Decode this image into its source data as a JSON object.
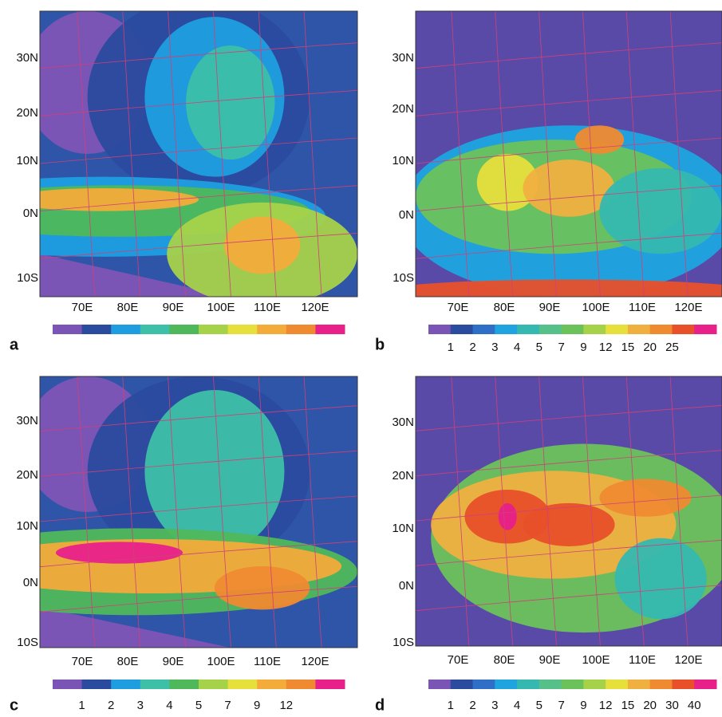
{
  "panels": [
    {
      "letter": "a",
      "lat_labels": [
        "30N",
        "20N",
        "10N",
        "0N",
        "10S"
      ],
      "lon_labels": [
        "70E",
        "80E",
        "90E",
        "100E",
        "110E",
        "120E"
      ],
      "colorbar": {
        "colors": [
          "#7a55b5",
          "#2a4b9e",
          "#1e9ee0",
          "#3dbfa8",
          "#4fb85a",
          "#a6d24a",
          "#e6df3c",
          "#f3ab3a",
          "#f08a30",
          "#e8208a"
        ],
        "labels": []
      }
    },
    {
      "letter": "b",
      "lat_labels": [
        "30N",
        "20N",
        "10N",
        "0N",
        "10S"
      ],
      "lon_labels": [
        "70E",
        "80E",
        "90E",
        "100E",
        "110E",
        "120E"
      ],
      "colorbar": {
        "colors": [
          "#7a55b5",
          "#2a4b9e",
          "#2f6fc8",
          "#1fa4e0",
          "#35b8b0",
          "#55c08a",
          "#6cc25a",
          "#a6d24a",
          "#e6df3c",
          "#f0b040",
          "#f08a30",
          "#e8502a",
          "#e8208a"
        ],
        "labels": [
          "1",
          "2",
          "3",
          "4",
          "5",
          "7",
          "9",
          "12",
          "15",
          "20",
          "25"
        ]
      }
    },
    {
      "letter": "c",
      "lat_labels": [
        "30N",
        "20N",
        "10N",
        "0N",
        "10S"
      ],
      "lon_labels": [
        "70E",
        "80E",
        "90E",
        "100E",
        "110E",
        "120E"
      ],
      "colorbar": {
        "colors": [
          "#7a55b5",
          "#2a4b9e",
          "#1e9ee0",
          "#3dbfa8",
          "#4fb85a",
          "#a6d24a",
          "#e6df3c",
          "#f3ab3a",
          "#f08a30",
          "#e8208a"
        ],
        "labels": [
          "1",
          "2",
          "3",
          "4",
          "5",
          "7",
          "9",
          "12"
        ]
      }
    },
    {
      "letter": "d",
      "lat_labels": [
        "30N",
        "20N",
        "10N",
        "0N",
        "10S"
      ],
      "lon_labels": [
        "70E",
        "80E",
        "90E",
        "100E",
        "110E",
        "120E"
      ],
      "colorbar": {
        "colors": [
          "#7a55b5",
          "#2a4b9e",
          "#2f6fc8",
          "#1fa4e0",
          "#35b8b0",
          "#55c08a",
          "#6cc25a",
          "#a6d24a",
          "#e6df3c",
          "#f0b040",
          "#f08a30",
          "#e8502a",
          "#e8208a"
        ],
        "labels": [
          "1",
          "2",
          "3",
          "4",
          "5",
          "7",
          "9",
          "12",
          "15",
          "20",
          "30",
          "40"
        ]
      }
    }
  ]
}
